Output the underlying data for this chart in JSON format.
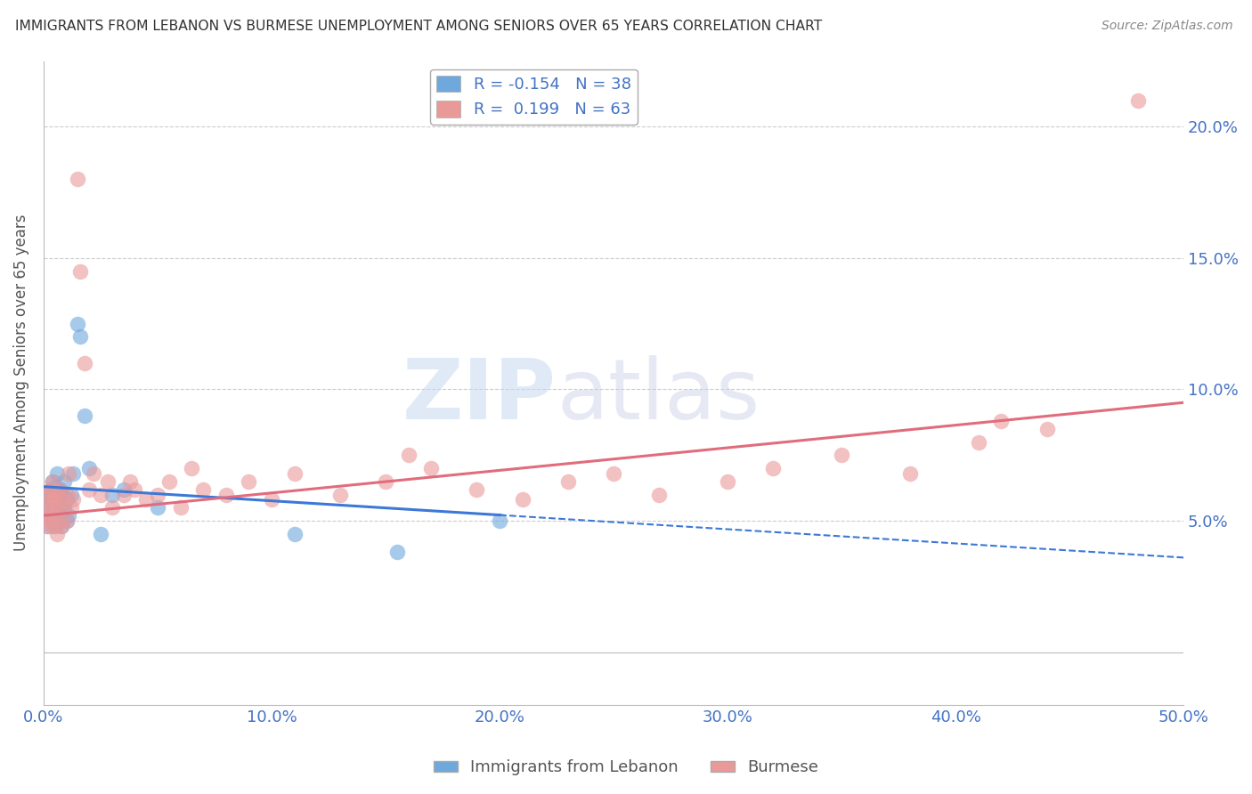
{
  "title": "IMMIGRANTS FROM LEBANON VS BURMESE UNEMPLOYMENT AMONG SENIORS OVER 65 YEARS CORRELATION CHART",
  "source": "Source: ZipAtlas.com",
  "ylabel": "Unemployment Among Seniors over 65 years",
  "xlim": [
    0.0,
    0.5
  ],
  "ylim": [
    -0.02,
    0.225
  ],
  "yticks": [
    0.0,
    0.05,
    0.1,
    0.15,
    0.2
  ],
  "ytick_labels": [
    "",
    "5.0%",
    "10.0%",
    "15.0%",
    "20.0%"
  ],
  "xticks": [
    0.0,
    0.1,
    0.2,
    0.3,
    0.4,
    0.5
  ],
  "xtick_labels": [
    "0.0%",
    "10.0%",
    "20.0%",
    "30.0%",
    "40.0%",
    "50.0%"
  ],
  "legend_r1": "R = -0.154",
  "legend_n1": "N = 38",
  "legend_r2": "R =  0.199",
  "legend_n2": "N = 63",
  "color_lebanon": "#6fa8dc",
  "color_burmese": "#ea9999",
  "color_lebanon_line": "#3c78d8",
  "color_burmese_line": "#e06c7c",
  "color_grid": "#cccccc",
  "color_axis": "#bbbbbb",
  "watermark_zip": "ZIP",
  "watermark_atlas": "atlas",
  "lebanon_x": [
    0.001,
    0.002,
    0.002,
    0.003,
    0.003,
    0.003,
    0.004,
    0.004,
    0.004,
    0.005,
    0.005,
    0.005,
    0.006,
    0.006,
    0.006,
    0.007,
    0.007,
    0.007,
    0.008,
    0.008,
    0.009,
    0.009,
    0.01,
    0.01,
    0.011,
    0.012,
    0.013,
    0.015,
    0.016,
    0.018,
    0.02,
    0.025,
    0.03,
    0.035,
    0.05,
    0.11,
    0.155,
    0.2
  ],
  "lebanon_y": [
    0.055,
    0.06,
    0.048,
    0.052,
    0.058,
    0.062,
    0.05,
    0.055,
    0.065,
    0.048,
    0.058,
    0.063,
    0.052,
    0.06,
    0.068,
    0.05,
    0.055,
    0.062,
    0.048,
    0.06,
    0.055,
    0.065,
    0.05,
    0.058,
    0.052,
    0.06,
    0.068,
    0.125,
    0.12,
    0.09,
    0.07,
    0.045,
    0.06,
    0.062,
    0.055,
    0.045,
    0.038,
    0.05
  ],
  "burmese_x": [
    0.001,
    0.001,
    0.002,
    0.002,
    0.003,
    0.003,
    0.003,
    0.004,
    0.004,
    0.004,
    0.005,
    0.005,
    0.005,
    0.006,
    0.006,
    0.007,
    0.007,
    0.008,
    0.008,
    0.009,
    0.01,
    0.01,
    0.011,
    0.012,
    0.013,
    0.015,
    0.016,
    0.018,
    0.02,
    0.022,
    0.025,
    0.028,
    0.03,
    0.035,
    0.038,
    0.04,
    0.045,
    0.05,
    0.055,
    0.06,
    0.065,
    0.07,
    0.08,
    0.09,
    0.1,
    0.11,
    0.13,
    0.15,
    0.17,
    0.19,
    0.21,
    0.23,
    0.25,
    0.27,
    0.3,
    0.32,
    0.35,
    0.38,
    0.41,
    0.44,
    0.16,
    0.42,
    0.48
  ],
  "burmese_y": [
    0.055,
    0.048,
    0.06,
    0.052,
    0.058,
    0.05,
    0.062,
    0.048,
    0.055,
    0.065,
    0.052,
    0.058,
    0.06,
    0.045,
    0.055,
    0.05,
    0.062,
    0.048,
    0.058,
    0.055,
    0.06,
    0.05,
    0.068,
    0.055,
    0.058,
    0.18,
    0.145,
    0.11,
    0.062,
    0.068,
    0.06,
    0.065,
    0.055,
    0.06,
    0.065,
    0.062,
    0.058,
    0.06,
    0.065,
    0.055,
    0.07,
    0.062,
    0.06,
    0.065,
    0.058,
    0.068,
    0.06,
    0.065,
    0.07,
    0.062,
    0.058,
    0.065,
    0.068,
    0.06,
    0.065,
    0.07,
    0.075,
    0.068,
    0.08,
    0.085,
    0.075,
    0.088,
    0.21
  ],
  "leb_line_x0": 0.0,
  "leb_line_x1": 0.5,
  "leb_line_y0": 0.063,
  "leb_line_y1": 0.036,
  "bur_line_x0": 0.0,
  "bur_line_x1": 0.5,
  "bur_line_y0": 0.052,
  "bur_line_y1": 0.095
}
